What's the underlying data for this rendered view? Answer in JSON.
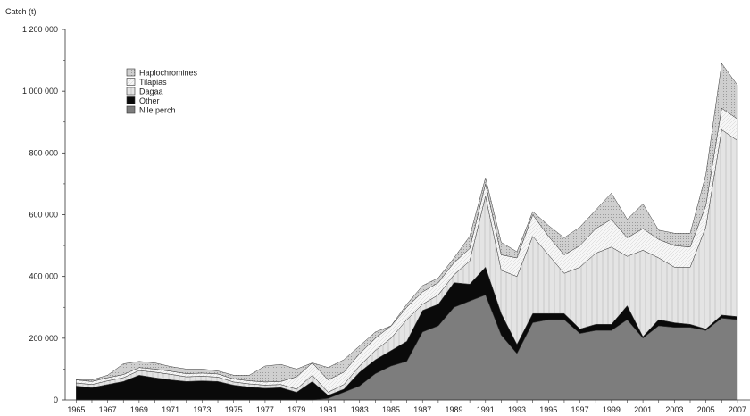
{
  "chart_data": {
    "type": "area",
    "stacked": true,
    "ylabel": "Catch (t)",
    "ylim": [
      0,
      1200000
    ],
    "yticks": [
      0,
      200000,
      400000,
      600000,
      800000,
      1000000,
      1200000
    ],
    "ytick_labels": [
      "0",
      "200 000",
      "400 000",
      "600 000",
      "800 000",
      "1 000 000",
      "1 200 000"
    ],
    "xticks": [
      1965,
      1967,
      1969,
      1971,
      1973,
      1975,
      1977,
      1979,
      1981,
      1983,
      1985,
      1987,
      1989,
      1991,
      1993,
      1995,
      1997,
      1999,
      2001,
      2003,
      2005,
      2007
    ],
    "xtick_labels": [
      "1965",
      "1967",
      "1969",
      "1971",
      "1973",
      "1975",
      "1977",
      "1979",
      "1981",
      "1983",
      "1985",
      "1987",
      "1989",
      "1991",
      "1993",
      "1995",
      "1997",
      "1999",
      "2001",
      "2003",
      "2005",
      "2007"
    ],
    "grid": false,
    "legend_position": "top-left",
    "x": [
      1965,
      1966,
      1967,
      1968,
      1969,
      1970,
      1971,
      1972,
      1973,
      1974,
      1975,
      1976,
      1977,
      1978,
      1979,
      1980,
      1981,
      1982,
      1983,
      1984,
      1985,
      1986,
      1987,
      1988,
      1989,
      1990,
      1991,
      1992,
      1993,
      1994,
      1995,
      1996,
      1997,
      1998,
      1999,
      2000,
      2001,
      2002,
      2003,
      2004,
      2005,
      2006,
      2007
    ],
    "series": [
      {
        "name": "Nile perch",
        "color": "#7d7d7d",
        "values": [
          0,
          0,
          0,
          0,
          0,
          0,
          0,
          0,
          0,
          0,
          0,
          0,
          0,
          0,
          0,
          0,
          5000,
          25000,
          45000,
          85000,
          110000,
          125000,
          220000,
          240000,
          300000,
          320000,
          340000,
          210000,
          150000,
          250000,
          260000,
          260000,
          215000,
          225000,
          225000,
          260000,
          200000,
          240000,
          235000,
          235000,
          225000,
          265000,
          260000
        ]
      },
      {
        "name": "Other",
        "color": "#0a0a0a",
        "values": [
          45000,
          40000,
          50000,
          60000,
          80000,
          72000,
          65000,
          60000,
          62000,
          60000,
          48000,
          42000,
          38000,
          40000,
          25000,
          60000,
          10000,
          10000,
          45000,
          45000,
          50000,
          65000,
          70000,
          70000,
          80000,
          55000,
          90000,
          70000,
          30000,
          30000,
          20000,
          20000,
          15000,
          20000,
          20000,
          45000,
          5000,
          20000,
          15000,
          10000,
          5000,
          10000,
          10000
        ]
      },
      {
        "name": "Dagaa",
        "color": "#e2e2e2",
        "values": [
          10000,
          10000,
          12000,
          12000,
          15000,
          18000,
          18000,
          15000,
          15000,
          14000,
          10000,
          10000,
          10000,
          10000,
          10000,
          20000,
          10000,
          15000,
          20000,
          30000,
          40000,
          70000,
          20000,
          30000,
          25000,
          75000,
          230000,
          140000,
          220000,
          250000,
          190000,
          130000,
          200000,
          230000,
          250000,
          160000,
          280000,
          200000,
          180000,
          185000,
          330000,
          600000,
          570000
        ]
      },
      {
        "name": "Tilapias",
        "color": "#ffffff",
        "values": [
          10000,
          10000,
          10000,
          10000,
          10000,
          10000,
          10000,
          10000,
          10000,
          10000,
          10000,
          10000,
          10000,
          10000,
          40000,
          40000,
          40000,
          40000,
          40000,
          40000,
          40000,
          40000,
          40000,
          40000,
          40000,
          40000,
          40000,
          50000,
          60000,
          70000,
          60000,
          60000,
          70000,
          80000,
          90000,
          60000,
          70000,
          60000,
          70000,
          65000,
          70000,
          70000,
          70000
        ]
      },
      {
        "name": "Haplochromines",
        "color": "#c8c8c8",
        "values": [
          0,
          5000,
          8000,
          35000,
          20000,
          20000,
          15000,
          15000,
          13000,
          10000,
          12000,
          18000,
          52000,
          55000,
          25000,
          0,
          40000,
          40000,
          25000,
          20000,
          0,
          10000,
          20000,
          15000,
          15000,
          40000,
          20000,
          40000,
          20000,
          10000,
          35000,
          55000,
          60000,
          60000,
          85000,
          60000,
          80000,
          30000,
          40000,
          45000,
          100000,
          145000,
          110000
        ]
      }
    ]
  }
}
